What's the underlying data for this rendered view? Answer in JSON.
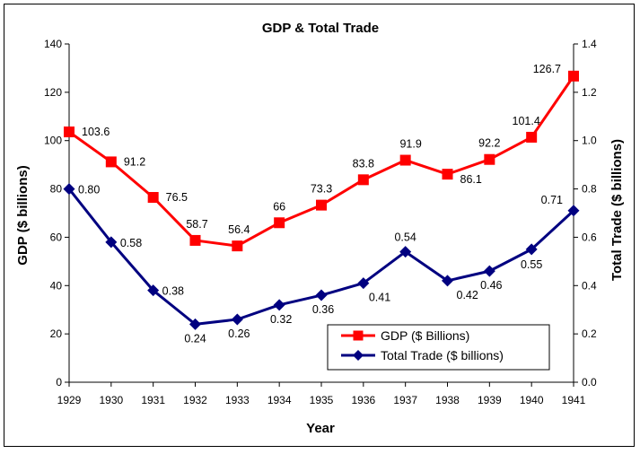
{
  "chart_data": {
    "type": "line",
    "title": "GDP & Total Trade",
    "xlabel": "Year",
    "ylabel": "GDP ($ billions)",
    "y2label": "Total Trade ($ billions)",
    "categories": [
      "1929",
      "1930",
      "1931",
      "1932",
      "1933",
      "1934",
      "1935",
      "1936",
      "1937",
      "1938",
      "1939",
      "1940",
      "1941"
    ],
    "ylim": [
      0,
      140
    ],
    "y2lim": [
      0,
      1.4
    ],
    "y_ticks": [
      "0",
      "20",
      "40",
      "60",
      "80",
      "100",
      "120",
      "140"
    ],
    "y2_ticks": [
      "0.0",
      "0.2",
      "0.4",
      "0.6",
      "0.8",
      "1.0",
      "1.2",
      "1.4"
    ],
    "grid": false,
    "legend_position": "bottom-right",
    "series": [
      {
        "name": "GDP ($ Billions)",
        "axis": "left",
        "color": "#ff0000",
        "marker": "square",
        "values": [
          103.6,
          91.2,
          76.5,
          58.7,
          56.4,
          66,
          73.3,
          83.8,
          91.9,
          86.1,
          92.2,
          101.4,
          126.7
        ],
        "labels": [
          "103.6",
          "91.2",
          "76.5",
          "58.7",
          "56.4",
          "66",
          "73.3",
          "83.8",
          "91.9",
          "86.1",
          "92.2",
          "101.4",
          "126.7"
        ]
      },
      {
        "name": "Total Trade ($ billions)",
        "axis": "right",
        "color": "#000080",
        "marker": "diamond",
        "values": [
          0.8,
          0.58,
          0.38,
          0.24,
          0.26,
          0.32,
          0.36,
          0.41,
          0.54,
          0.42,
          0.46,
          0.55,
          0.71
        ],
        "labels": [
          "0.80",
          "0.58",
          "0.38",
          "0.24",
          "0.26",
          "0.32",
          "0.36",
          "0.41",
          "0.54",
          "0.42",
          "0.46",
          "0.55",
          "0.71"
        ]
      }
    ]
  }
}
